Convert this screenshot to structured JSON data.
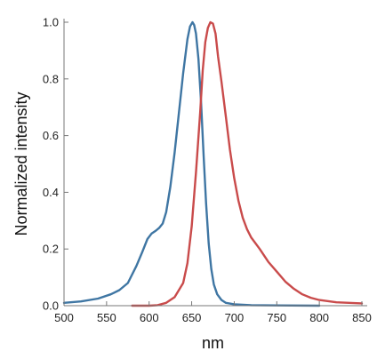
{
  "chart_data": {
    "type": "line",
    "title": "",
    "xlabel": "nm",
    "ylabel": "Normalized intensity",
    "xlim": [
      500,
      850
    ],
    "ylim": [
      0,
      1
    ],
    "xticks": [
      "500",
      "550",
      "600",
      "650",
      "700",
      "750",
      "800",
      "850"
    ],
    "yticks": [
      "0.0",
      "0.2",
      "0.4",
      "0.6",
      "0.8",
      "1.0"
    ],
    "grid": false,
    "legend": "none",
    "series": [
      {
        "color": "#3f76a3",
        "x": [
          500,
          520,
          540,
          555,
          565,
          575,
          585,
          592,
          598,
          603,
          608,
          612,
          616,
          620,
          625,
          630,
          635,
          640,
          645,
          648,
          651,
          653,
          655,
          658,
          661,
          664,
          667,
          670,
          673,
          676,
          680,
          685,
          690,
          700,
          720,
          750,
          800
        ],
        "y": [
          0.01,
          0.015,
          0.025,
          0.04,
          0.055,
          0.08,
          0.14,
          0.19,
          0.235,
          0.255,
          0.265,
          0.275,
          0.29,
          0.33,
          0.42,
          0.54,
          0.68,
          0.82,
          0.94,
          0.985,
          1.0,
          0.99,
          0.96,
          0.87,
          0.72,
          0.53,
          0.36,
          0.22,
          0.13,
          0.075,
          0.04,
          0.02,
          0.01,
          0.005,
          0.002,
          0.001,
          0.0
        ]
      },
      {
        "color": "#c94b4b",
        "x": [
          580,
          600,
          610,
          620,
          630,
          640,
          645,
          650,
          655,
          660,
          663,
          666,
          669,
          672,
          675,
          678,
          681,
          685,
          690,
          695,
          700,
          705,
          710,
          715,
          720,
          730,
          740,
          750,
          760,
          770,
          780,
          790,
          800,
          820,
          850
        ],
        "y": [
          0.0,
          0.0,
          0.002,
          0.01,
          0.03,
          0.08,
          0.15,
          0.28,
          0.47,
          0.68,
          0.83,
          0.93,
          0.98,
          1.0,
          0.995,
          0.96,
          0.88,
          0.79,
          0.67,
          0.55,
          0.45,
          0.37,
          0.31,
          0.27,
          0.24,
          0.2,
          0.155,
          0.12,
          0.085,
          0.06,
          0.04,
          0.028,
          0.02,
          0.012,
          0.008
        ]
      }
    ]
  }
}
